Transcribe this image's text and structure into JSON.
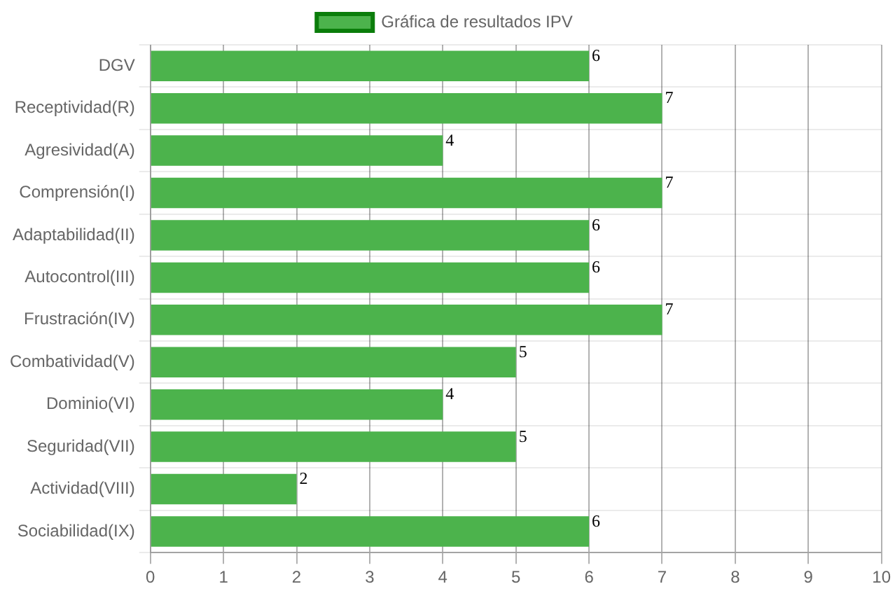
{
  "chart_data": {
    "type": "bar",
    "orientation": "horizontal",
    "categories": [
      "DGV",
      "Receptividad(R)",
      "Agresividad(A)",
      "Comprensión(I)",
      "Adaptabilidad(II)",
      "Autocontrol(III)",
      "Frustración(IV)",
      "Combatividad(V)",
      "Dominio(VI)",
      "Seguridad(VII)",
      "Actividad(VIII)",
      "Sociabilidad(IX)"
    ],
    "series": [
      {
        "name": "Gráfica de resultados IPV",
        "color": "#4cb34c",
        "values": [
          6,
          7,
          4,
          7,
          6,
          6,
          7,
          5,
          4,
          5,
          2,
          6
        ]
      }
    ],
    "xlim": [
      0,
      10
    ],
    "xticks": [
      0,
      1,
      2,
      3,
      4,
      5,
      6,
      7,
      8,
      9,
      10
    ],
    "grid": true,
    "legend": "top",
    "data_labels": true
  }
}
